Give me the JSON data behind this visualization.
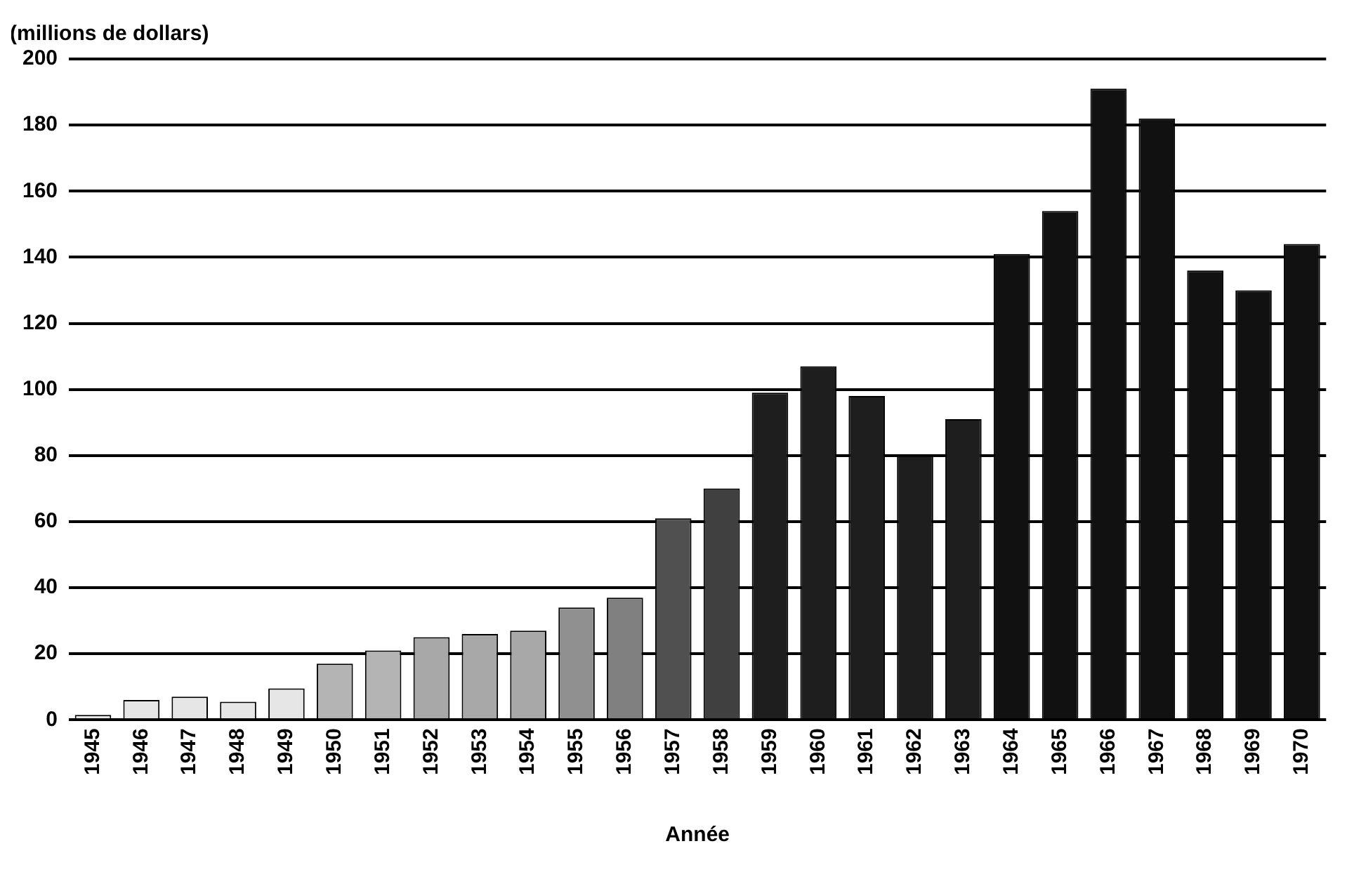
{
  "chart_data": {
    "type": "bar",
    "ylabel": "(millions de dollars)",
    "xlabel": "Année",
    "categories": [
      "1945",
      "1946",
      "1947",
      "1948",
      "1949",
      "1950",
      "1951",
      "1952",
      "1953",
      "1954",
      "1955",
      "1956",
      "1957",
      "1958",
      "1959",
      "1960",
      "1961",
      "1962",
      "1963",
      "1964",
      "1965",
      "1966",
      "1967",
      "1968",
      "1969",
      "1970"
    ],
    "values": [
      1.5,
      6,
      7,
      5.5,
      9.5,
      17,
      21,
      25,
      26,
      27,
      34,
      37,
      61,
      70,
      99,
      107,
      98,
      80,
      91,
      141,
      154,
      191,
      182,
      136,
      130,
      144
    ],
    "colors": [
      "#e6e6e6",
      "#e6e6e6",
      "#e6e6e6",
      "#e6e6e6",
      "#e6e6e6",
      "#b4b4b4",
      "#b4b4b4",
      "#a8a8a8",
      "#a8a8a8",
      "#a8a8a8",
      "#909090",
      "#808080",
      "#505050",
      "#404040",
      "#1e1e1e",
      "#1e1e1e",
      "#1e1e1e",
      "#1e1e1e",
      "#1e1e1e",
      "#111111",
      "#111111",
      "#111111",
      "#111111",
      "#111111",
      "#111111",
      "#111111"
    ],
    "ylim": [
      0,
      200
    ],
    "yticks": [
      0,
      20,
      40,
      60,
      80,
      100,
      120,
      140,
      160,
      180,
      200
    ],
    "grid": "y",
    "legend": false
  }
}
